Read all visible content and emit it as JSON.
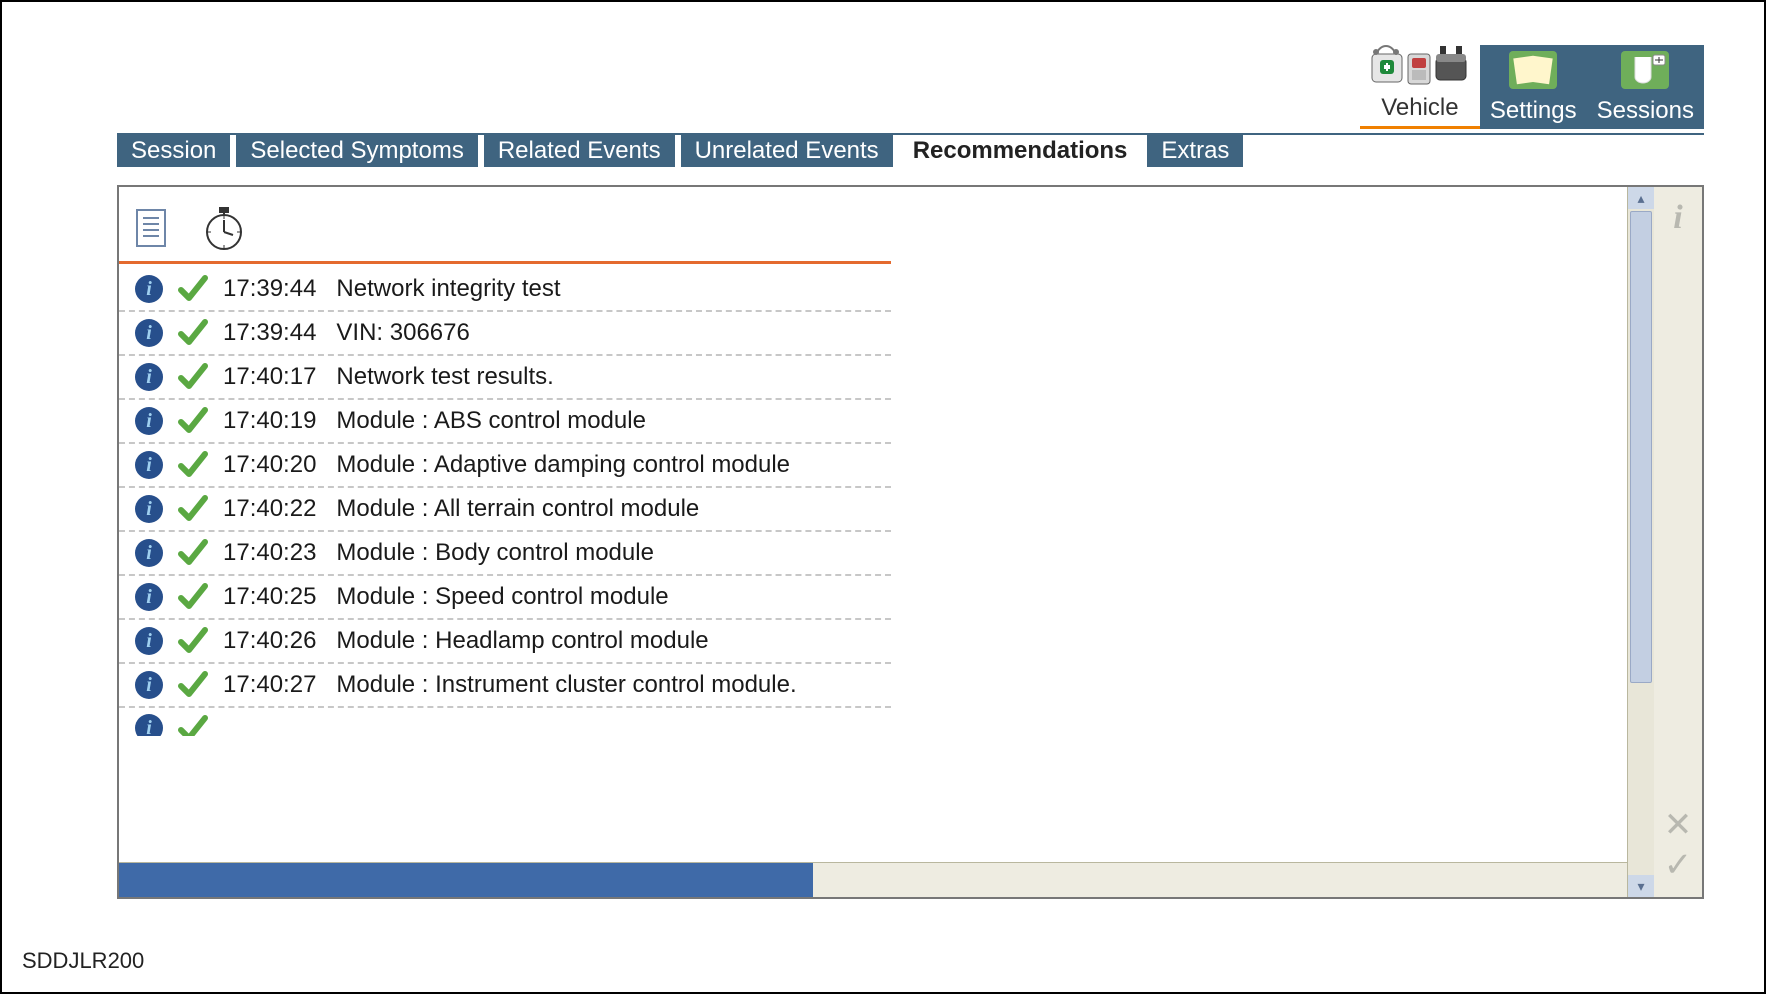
{
  "caption": "SDDJLR200",
  "colors": {
    "tab_bg": "#3f6480",
    "accent_orange": "#f08000",
    "header_underline": "#e46a2e",
    "progress": "#3f6aa8",
    "panel_bg": "#eeece1",
    "info_badge": "#274f8c",
    "check_green": "#5aa842"
  },
  "topnav": [
    {
      "label": "Vehicle",
      "active": true,
      "icon": "vehicle"
    },
    {
      "label": "Settings",
      "active": false,
      "icon": "settings"
    },
    {
      "label": "Sessions",
      "active": false,
      "icon": "sessions"
    }
  ],
  "tabs": [
    {
      "label": "Session",
      "active": false
    },
    {
      "label": "Selected Symptoms",
      "active": false
    },
    {
      "label": "Related Events",
      "active": false
    },
    {
      "label": "Unrelated Events",
      "active": false
    },
    {
      "label": "Recommendations",
      "active": true
    },
    {
      "label": "Extras",
      "active": false
    }
  ],
  "log": {
    "rows": [
      {
        "time": "17:39:44",
        "text": "Network integrity test"
      },
      {
        "time": "17:39:44",
        "text": "VIN: 306676"
      },
      {
        "time": "17:40:17",
        "text": "Network test results."
      },
      {
        "time": "17:40:19",
        "text": "Module : ABS control module"
      },
      {
        "time": "17:40:20",
        "text": "Module : Adaptive damping control module"
      },
      {
        "time": "17:40:22",
        "text": "Module : All terrain control module"
      },
      {
        "time": "17:40:23",
        "text": "Module : Body control module"
      },
      {
        "time": "17:40:25",
        "text": "Module : Speed control module"
      },
      {
        "time": "17:40:26",
        "text": "Module : Headlamp control module"
      },
      {
        "time": "17:40:27",
        "text": "Module : Instrument cluster control module."
      }
    ]
  },
  "side_actions": {
    "info": "i",
    "cancel": "✕",
    "confirm": "✓"
  },
  "scroll": {
    "thumb_ratio": 0.66
  },
  "progress": {
    "ratio": 0.46
  }
}
